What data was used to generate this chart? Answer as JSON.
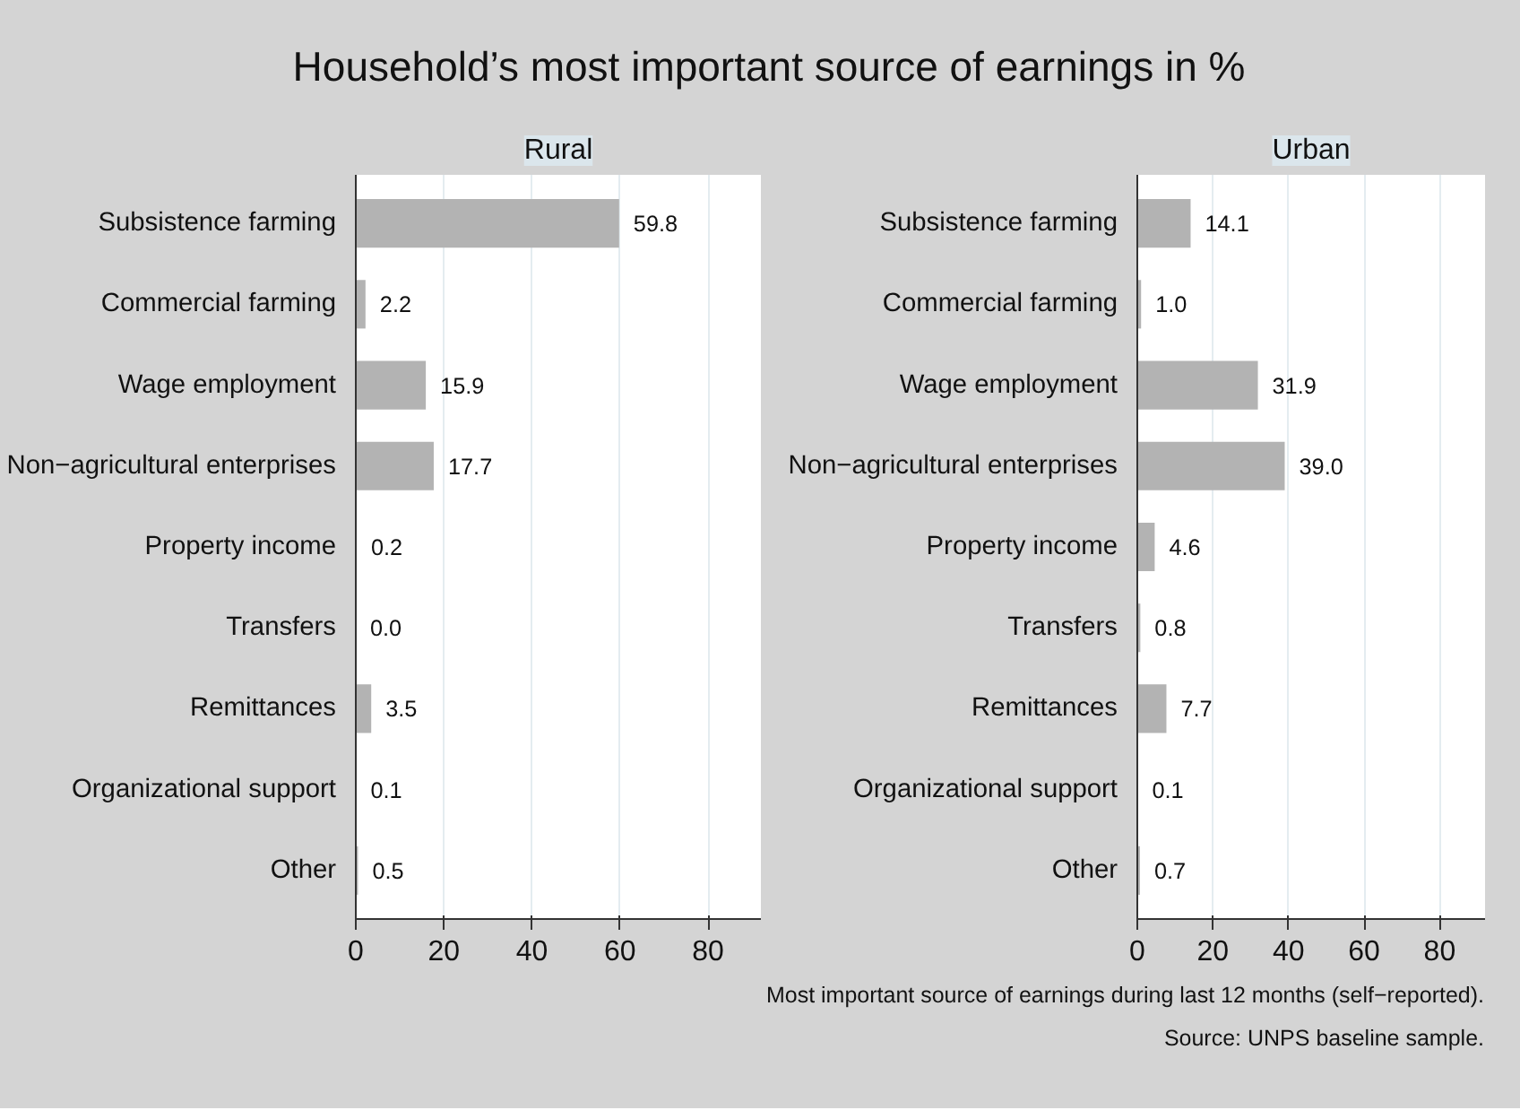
{
  "chart_data": [
    {
      "type": "bar",
      "orientation": "horizontal",
      "title": "Household’s most important source of earnings in %",
      "subtitle": "Rural",
      "categories": [
        "Subsistence farming",
        "Commercial farming",
        "Wage employment",
        "Non−agricultural enterprises",
        "Property income",
        "Transfers",
        "Remittances",
        "Organizational support",
        "Other"
      ],
      "values": [
        59.8,
        2.2,
        15.9,
        17.7,
        0.2,
        0.0,
        3.5,
        0.1,
        0.5
      ],
      "value_labels": [
        "59.8",
        "2.2",
        "15.9",
        "17.7",
        "0.2",
        "0.0",
        "3.5",
        "0.1",
        "0.5"
      ],
      "color": "#b3b3b3",
      "xlim": [
        0,
        92
      ],
      "xticks": [
        0,
        20,
        40,
        60,
        80
      ],
      "grid": "x"
    },
    {
      "type": "bar",
      "orientation": "horizontal",
      "subtitle": "Urban",
      "categories": [
        "Subsistence farming",
        "Commercial farming",
        "Wage employment",
        "Non−agricultural enterprises",
        "Property income",
        "Transfers",
        "Remittances",
        "Organizational support",
        "Other"
      ],
      "values": [
        14.1,
        1.0,
        31.9,
        39.0,
        4.6,
        0.8,
        7.7,
        0.1,
        0.7
      ],
      "value_labels": [
        "14.1",
        "1.0",
        "31.9",
        "39.0",
        "4.6",
        "0.8",
        "7.7",
        "0.1",
        "0.7"
      ],
      "color": "#b3b3b3",
      "xlim": [
        0,
        92
      ],
      "xticks": [
        0,
        20,
        40,
        60,
        80
      ],
      "grid": "x",
      "annotations": [
        "Most important source of earnings during last 12 months (self−reported).",
        "Source: UNPS baseline sample."
      ]
    }
  ]
}
